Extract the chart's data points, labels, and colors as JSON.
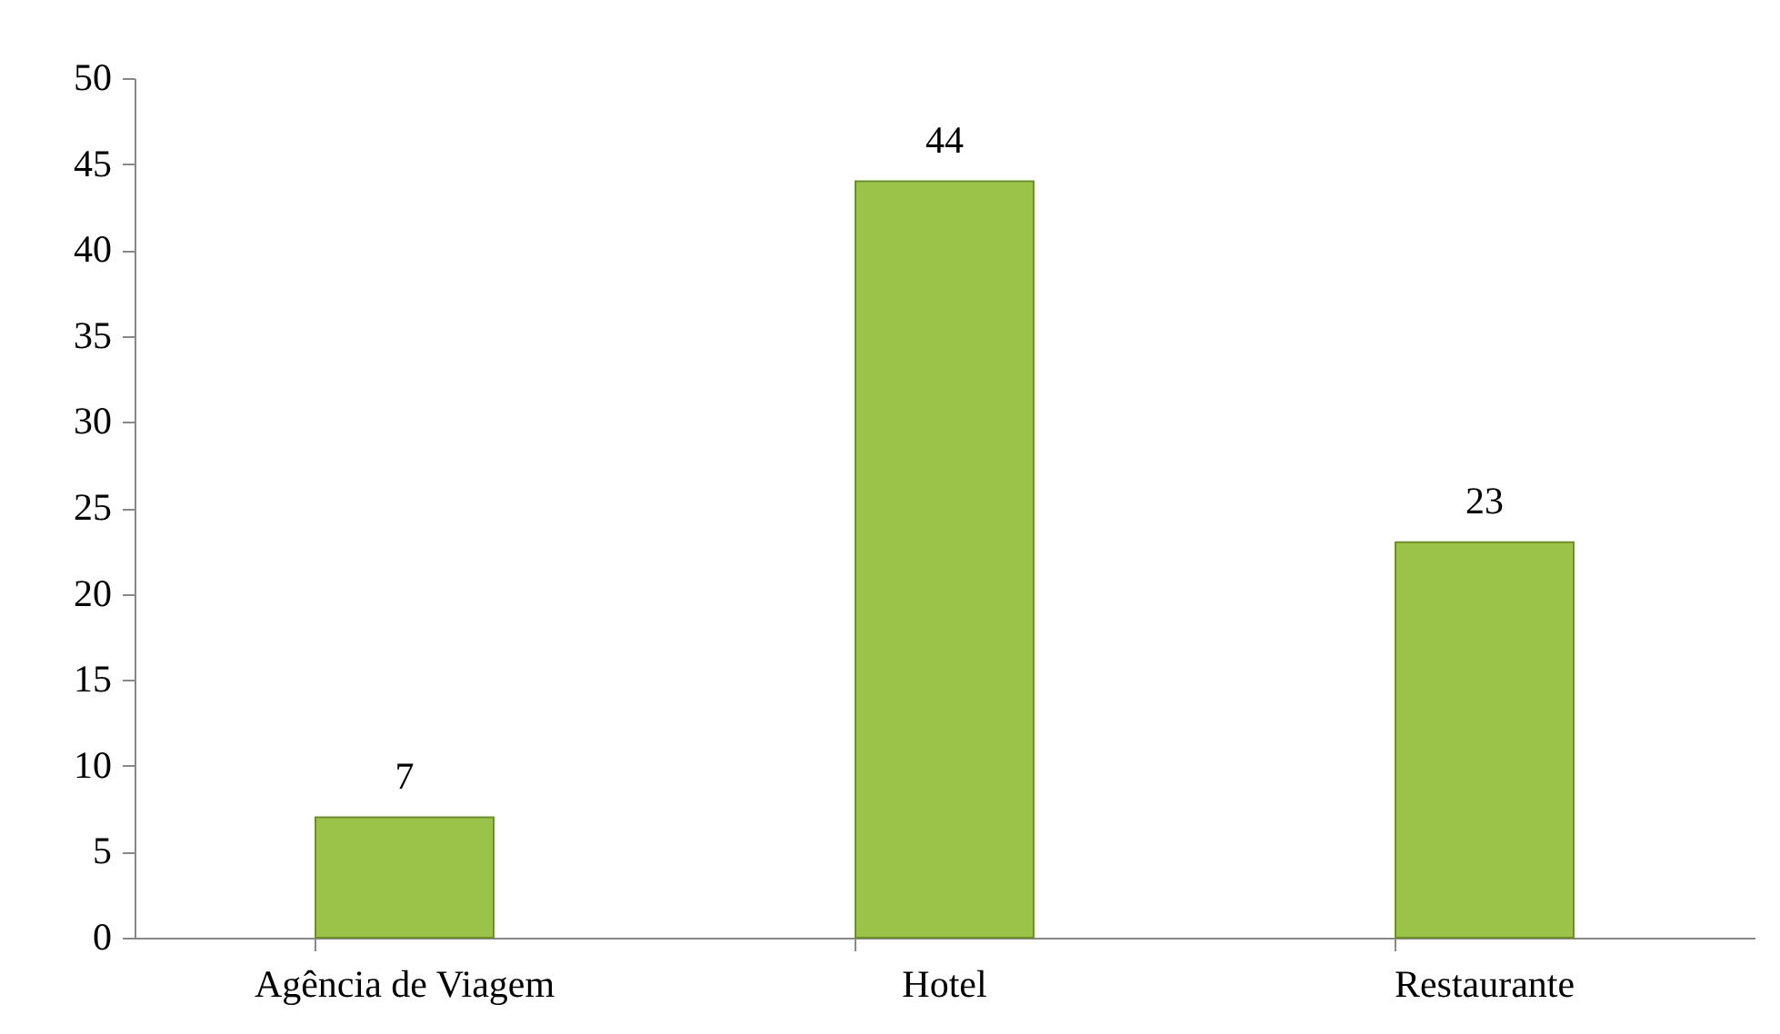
{
  "chart_data": {
    "type": "bar",
    "categories": [
      "Agência de Viagem",
      "Hotel",
      "Restaurante"
    ],
    "values": [
      7,
      44,
      23
    ],
    "color": "#9bc34a",
    "ylim": [
      0,
      50
    ],
    "yticks": [
      0,
      5,
      10,
      15,
      20,
      25,
      30,
      35,
      40,
      45,
      50
    ],
    "data_labels": true
  }
}
